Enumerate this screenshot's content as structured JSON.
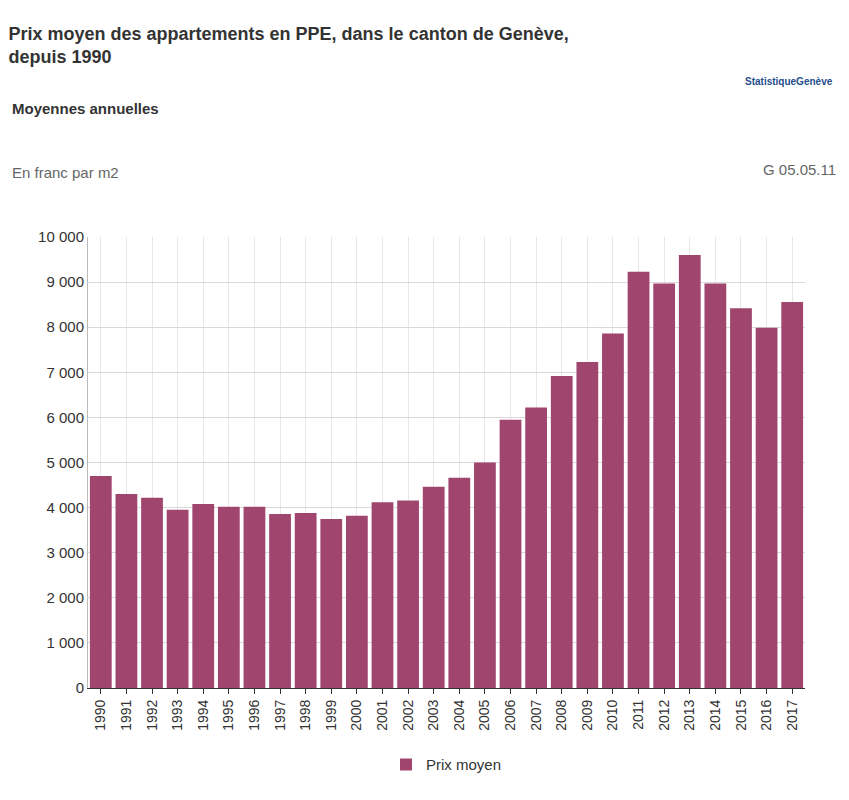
{
  "chart_data": {
    "type": "bar",
    "title": "Prix moyen des appartements en PPE, dans le canton de Genève, depuis 1990",
    "subtitle": "Moyennes annuelles",
    "y_label": "En franc par m2",
    "annotations": [
      "G 05.05.11",
      "StatistiqueGenève"
    ],
    "categories": [
      "1990",
      "1991",
      "1992",
      "1993",
      "1994",
      "1995",
      "1996",
      "1997",
      "1998",
      "1999",
      "2000",
      "2001",
      "2002",
      "2003",
      "2004",
      "2005",
      "2006",
      "2007",
      "2008",
      "2009",
      "2010",
      "2011",
      "2012",
      "2013",
      "2014",
      "2015",
      "2016",
      "2017"
    ],
    "series": [
      {
        "name": "Prix moyen",
        "color": "#a0466e",
        "values": [
          4700,
          4300,
          4220,
          3950,
          4080,
          4020,
          4020,
          3860,
          3880,
          3750,
          3820,
          4120,
          4160,
          4460,
          4660,
          5000,
          5950,
          6220,
          6920,
          7230,
          7860,
          9230,
          8970,
          9600,
          8970,
          8420,
          7990,
          8560
        ]
      }
    ],
    "ylim": [
      0,
      10000
    ],
    "yticks": [
      0,
      {
        "value": 1000,
        "label": "1 000"
      },
      {
        "value": 2000,
        "label": "2 000"
      },
      {
        "value": 3000,
        "label": "3 000"
      },
      {
        "value": 4000,
        "label": "4 000"
      },
      {
        "value": 5000,
        "label": "5 000"
      },
      {
        "value": 6000,
        "label": "6 000"
      },
      {
        "value": 7000,
        "label": "7 000"
      },
      {
        "value": 8000,
        "label": "8 000"
      },
      {
        "value": 9000,
        "label": "9 000"
      },
      {
        "value": 10000,
        "label": "10 000"
      }
    ],
    "grid": true,
    "legend": "bottom"
  }
}
